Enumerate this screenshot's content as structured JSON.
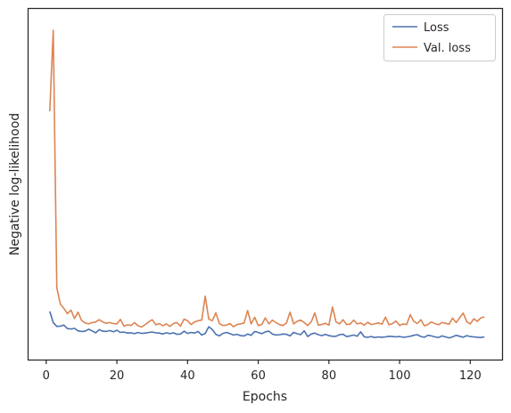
{
  "chart_data": {
    "type": "line",
    "title": "",
    "xlabel": "Epochs",
    "ylabel": "Negative log-likelihood",
    "xlim": [
      -5,
      129
    ],
    "ylim": [
      0,
      100
    ],
    "yticks_visible": false,
    "xticks": [
      0,
      20,
      40,
      60,
      80,
      100,
      120
    ],
    "grid": false,
    "legend_position": "top-right",
    "series": [
      {
        "name": "Loss",
        "color": "#4c72b0",
        "x": [
          1,
          2,
          3,
          4,
          5,
          6,
          7,
          8,
          9,
          10,
          11,
          12,
          13,
          14,
          15,
          16,
          17,
          18,
          19,
          20,
          21,
          22,
          23,
          24,
          25,
          26,
          27,
          28,
          29,
          30,
          31,
          32,
          33,
          34,
          35,
          36,
          37,
          38,
          39,
          40,
          41,
          42,
          43,
          44,
          45,
          46,
          47,
          48,
          49,
          50,
          51,
          52,
          53,
          54,
          55,
          56,
          57,
          58,
          59,
          60,
          61,
          62,
          63,
          64,
          65,
          66,
          67,
          68,
          69,
          70,
          71,
          72,
          73,
          74,
          75,
          76,
          77,
          78,
          79,
          80,
          81,
          82,
          83,
          84,
          85,
          86,
          87,
          88,
          89,
          90,
          91,
          92,
          93,
          94,
          95,
          96,
          97,
          98,
          99,
          100,
          101,
          102,
          103,
          104,
          105,
          106,
          107,
          108,
          109,
          110,
          111,
          112,
          113,
          114,
          115,
          116,
          117,
          118,
          119,
          120,
          121,
          122,
          123,
          124
        ],
        "values": [
          11.5,
          8.0,
          6.8,
          6.9,
          7.2,
          6.1,
          6.0,
          6.2,
          5.4,
          5.2,
          5.3,
          5.9,
          5.4,
          4.8,
          5.8,
          5.3,
          5.2,
          5.5,
          5.1,
          5.6,
          4.9,
          5.0,
          4.7,
          4.8,
          4.5,
          4.9,
          4.6,
          4.7,
          4.9,
          5.0,
          4.8,
          4.7,
          4.4,
          4.8,
          4.5,
          4.8,
          4.3,
          4.4,
          5.3,
          4.6,
          4.9,
          4.7,
          5.2,
          4.1,
          4.6,
          6.7,
          5.8,
          4.3,
          3.8,
          4.6,
          4.9,
          4.5,
          4.1,
          4.3,
          3.9,
          3.8,
          4.4,
          4.0,
          5.2,
          4.9,
          4.5,
          5.1,
          5.3,
          4.4,
          4.1,
          4.2,
          4.4,
          4.3,
          3.8,
          4.9,
          4.5,
          4.2,
          5.4,
          3.6,
          4.4,
          4.7,
          4.2,
          3.9,
          4.3,
          3.9,
          3.7,
          3.7,
          4.2,
          4.3,
          3.6,
          3.8,
          4.1,
          3.7,
          5.1,
          3.5,
          3.4,
          3.6,
          3.3,
          3.5,
          3.4,
          3.5,
          3.7,
          3.6,
          3.5,
          3.6,
          3.4,
          3.5,
          3.7,
          4.0,
          4.2,
          3.6,
          3.4,
          4.0,
          3.8,
          3.5,
          3.3,
          3.8,
          3.5,
          3.2,
          3.5,
          4.0,
          3.7,
          3.4,
          3.9,
          3.6,
          3.5,
          3.4,
          3.3,
          3.5
        ]
      },
      {
        "name": "Val. loss",
        "color": "#dd8452",
        "x": [
          1,
          2,
          3,
          4,
          5,
          6,
          7,
          8,
          9,
          10,
          11,
          12,
          13,
          14,
          15,
          16,
          17,
          18,
          19,
          20,
          21,
          22,
          23,
          24,
          25,
          26,
          27,
          28,
          29,
          30,
          31,
          32,
          33,
          34,
          35,
          36,
          37,
          38,
          39,
          40,
          41,
          42,
          43,
          44,
          45,
          46,
          47,
          48,
          49,
          50,
          51,
          52,
          53,
          54,
          55,
          56,
          57,
          58,
          59,
          60,
          61,
          62,
          63,
          64,
          65,
          66,
          67,
          68,
          69,
          70,
          71,
          72,
          73,
          74,
          75,
          76,
          77,
          78,
          79,
          80,
          81,
          82,
          83,
          84,
          85,
          86,
          87,
          88,
          89,
          90,
          91,
          92,
          93,
          94,
          95,
          96,
          97,
          98,
          99,
          100,
          101,
          102,
          103,
          104,
          105,
          106,
          107,
          108,
          109,
          110,
          111,
          112,
          113,
          114,
          115,
          116,
          117,
          118,
          119,
          120,
          121,
          122,
          123,
          124
        ],
        "values": [
          74.5,
          100.0,
          19.0,
          13.8,
          12.5,
          10.8,
          11.9,
          9.3,
          11.3,
          8.7,
          7.9,
          7.6,
          8.0,
          8.2,
          8.9,
          8.2,
          7.8,
          8.0,
          7.7,
          7.6,
          9.0,
          6.9,
          7.3,
          7.1,
          8.0,
          7.0,
          6.6,
          7.4,
          8.2,
          8.9,
          7.3,
          7.7,
          7.0,
          7.6,
          6.8,
          7.7,
          8.0,
          6.9,
          9.1,
          8.6,
          7.4,
          8.2,
          8.6,
          8.8,
          16.3,
          9.1,
          8.6,
          11.1,
          7.7,
          7.1,
          7.2,
          7.7,
          6.7,
          7.4,
          7.6,
          7.9,
          11.8,
          7.6,
          9.7,
          7.1,
          7.4,
          9.5,
          7.6,
          8.8,
          8.0,
          7.4,
          7.1,
          7.9,
          11.3,
          7.6,
          8.4,
          8.8,
          8.0,
          7.1,
          8.2,
          11.1,
          7.2,
          7.4,
          7.8,
          7.2,
          12.9,
          8.2,
          7.6,
          8.9,
          7.4,
          7.5,
          8.8,
          7.6,
          7.9,
          7.2,
          8.1,
          7.4,
          7.6,
          7.9,
          7.5,
          9.7,
          7.3,
          7.7,
          8.5,
          7.1,
          7.6,
          7.4,
          10.5,
          8.4,
          7.7,
          8.9,
          7.0,
          7.4,
          8.2,
          7.7,
          7.3,
          8.0,
          7.8,
          7.5,
          9.4,
          8.0,
          9.5,
          11.0,
          8.3,
          7.6,
          9.2,
          8.4,
          9.5,
          9.8
        ]
      }
    ]
  }
}
